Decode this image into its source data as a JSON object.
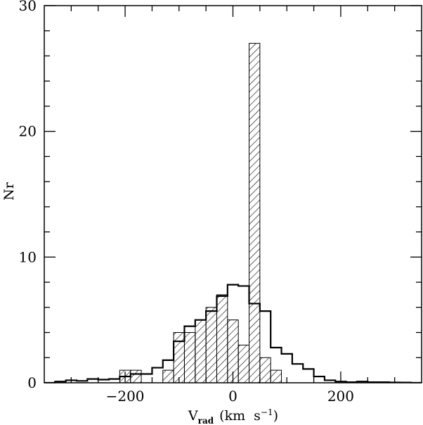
{
  "chart_data": {
    "type": "bar",
    "subtype": "overlaid step histogram with hatched histogram",
    "xlabel": {
      "main": "V",
      "sub": "rad",
      "unit": "(km  s",
      "exp": "−1",
      "close": ")"
    },
    "ylabel": "Nr",
    "xlim": [
      -350,
      350
    ],
    "ylim": [
      0,
      30
    ],
    "x_ticks": [
      -200,
      0,
      200
    ],
    "x_tick_labels": [
      "−200",
      "0",
      "200"
    ],
    "y_ticks": [
      0,
      10,
      20,
      30
    ],
    "y_tick_labels": [
      "0",
      "10",
      "20",
      "30"
    ],
    "x_minor_step": 50,
    "y_minor_step": 2,
    "bin_width": 20,
    "series": [
      {
        "style": "open-step",
        "bins": [
          {
            "x0": -350,
            "value": 0
          },
          {
            "x0": -330,
            "value": 0.1
          },
          {
            "x0": -310,
            "value": 0.2
          },
          {
            "x0": -290,
            "value": 0.15
          },
          {
            "x0": -270,
            "value": 0.3
          },
          {
            "x0": -250,
            "value": 0.25
          },
          {
            "x0": -230,
            "value": 0.3
          },
          {
            "x0": -210,
            "value": 0.5
          },
          {
            "x0": -190,
            "value": 0.7
          },
          {
            "x0": -170,
            "value": 0.7
          },
          {
            "x0": -150,
            "value": 1.2
          },
          {
            "x0": -130,
            "value": 1.8
          },
          {
            "x0": -110,
            "value": 3.3
          },
          {
            "x0": -90,
            "value": 4.5
          },
          {
            "x0": -70,
            "value": 5.0
          },
          {
            "x0": -50,
            "value": 5.7
          },
          {
            "x0": -30,
            "value": 6.9
          },
          {
            "x0": -10,
            "value": 7.8
          },
          {
            "x0": 10,
            "value": 7.7
          },
          {
            "x0": 30,
            "value": 6.3
          },
          {
            "x0": 50,
            "value": 5.7
          },
          {
            "x0": 70,
            "value": 2.8
          },
          {
            "x0": 90,
            "value": 2.3
          },
          {
            "x0": 110,
            "value": 1.5
          },
          {
            "x0": 130,
            "value": 1.1
          },
          {
            "x0": 150,
            "value": 0.5
          },
          {
            "x0": 170,
            "value": 0.2
          },
          {
            "x0": 190,
            "value": 0.1
          },
          {
            "x0": 210,
            "value": 0.05
          },
          {
            "x0": 230,
            "value": 0.1
          },
          {
            "x0": 250,
            "value": 0.05
          },
          {
            "x0": 270,
            "value": 0.05
          },
          {
            "x0": 290,
            "value": 0.03
          },
          {
            "x0": 310,
            "value": 0.02
          },
          {
            "x0": 330,
            "value": 0
          }
        ]
      },
      {
        "style": "hatched",
        "bins": [
          {
            "x0": -210,
            "value": 1
          },
          {
            "x0": -190,
            "value": 1
          },
          {
            "x0": -130,
            "value": 1
          },
          {
            "x0": -110,
            "value": 4
          },
          {
            "x0": -90,
            "value": 4
          },
          {
            "x0": -70,
            "value": 5
          },
          {
            "x0": -50,
            "value": 6
          },
          {
            "x0": -30,
            "value": 7
          },
          {
            "x0": -10,
            "value": 5
          },
          {
            "x0": 10,
            "value": 3
          },
          {
            "x0": 30,
            "value": 27
          },
          {
            "x0": 50,
            "value": 2
          },
          {
            "x0": 70,
            "value": 1
          }
        ]
      }
    ],
    "grid": false,
    "legend": "none"
  }
}
